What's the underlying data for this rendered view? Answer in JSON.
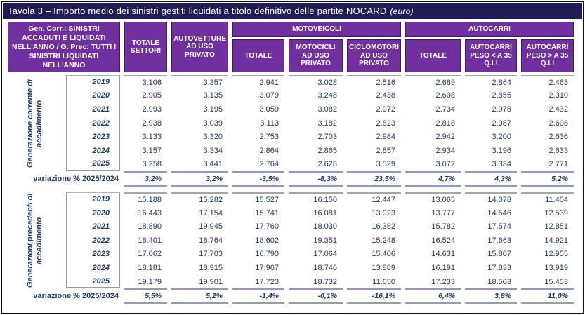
{
  "title": {
    "text": "Tavola 3 – Importo medio dei sinistri gestiti liquidati a titolo definitivo delle partite NOCARD",
    "suffix": "(euro)"
  },
  "colors": {
    "title_bg": "#201C55",
    "header_bg": "#7030A0",
    "header_text": "#FFFFFF",
    "data_text": "#1F3864",
    "rule_periwinkle": "#8E99C5",
    "rule_gray": "#A6A6A6",
    "frame_border": "#0B0B14"
  },
  "header": {
    "row_label": "Gen. Corr.: SINISTRI ACCADUTI E LIQUIDATI NELL'ANNO / G. Prec: TUTTI I SINISTRI LIQUIDATI NELL'ANNO",
    "totale_settori": "TOTALE SETTORI",
    "autovetture": "AUTOVETTURE AD USO PRIVATO",
    "motoveicoli": {
      "label": "MOTOVEICOLI",
      "totale": "TOTALE",
      "motocicli": "MOTOCICLI AD USO PRIVATO",
      "ciclomotori": "CICLOMOTORI AD USO PRIVATO"
    },
    "autocarri": {
      "label": "AUTOCARRI",
      "totale": "TOTALE",
      "peso_minore": "AUTOCARRI PESO < A 35 Q.LI",
      "peso_maggiore": "AUTOCARRI PESO > A 35 Q.LI"
    }
  },
  "blocks": [
    {
      "label": "Generazione corrente di accadimento",
      "rows": [
        {
          "year": "2019",
          "values": [
            "3.106",
            "3.357",
            "2.941",
            "3.028",
            "2.516",
            "2.689",
            "2.864",
            "2.463"
          ]
        },
        {
          "year": "2020",
          "values": [
            "2.905",
            "3.135",
            "3.079",
            "3.248",
            "2.438",
            "2.608",
            "2.855",
            "2.310"
          ]
        },
        {
          "year": "2021",
          "values": [
            "2.993",
            "3.195",
            "3.059",
            "3.082",
            "2.972",
            "2.734",
            "2.978",
            "2.432"
          ]
        },
        {
          "year": "2022",
          "values": [
            "2.938",
            "3.039",
            "3.113",
            "3.182",
            "2.823",
            "2.818",
            "2.987",
            "2.608"
          ]
        },
        {
          "year": "2023",
          "values": [
            "3.133",
            "3.320",
            "2.753",
            "2.703",
            "2.984",
            "2.942",
            "3.200",
            "2.636"
          ]
        },
        {
          "year": "2024",
          "values": [
            "3.157",
            "3.334",
            "2.864",
            "2.865",
            "2.857",
            "2.934",
            "3.196",
            "2.633"
          ]
        },
        {
          "year": "2025",
          "values": [
            "3.258",
            "3.441",
            "2.764",
            "2.628",
            "3.529",
            "3.072",
            "3.334",
            "2.771"
          ]
        }
      ],
      "variation": {
        "label": "variazione % 2025/2024",
        "values": [
          "3,2%",
          "3,2%",
          "-3,5%",
          "-8,3%",
          "23,5%",
          "4,7%",
          "4,3%",
          "5,2%"
        ]
      }
    },
    {
      "label": "Generazioni precedenti di accadimento",
      "rows": [
        {
          "year": "2019",
          "values": [
            "15.188",
            "15.282",
            "15.527",
            "16.150",
            "12.447",
            "13.065",
            "14.078",
            "11.404"
          ]
        },
        {
          "year": "2020",
          "values": [
            "16.443",
            "17.154",
            "15.741",
            "16.081",
            "13.923",
            "13.777",
            "14.546",
            "12.539"
          ]
        },
        {
          "year": "2021",
          "values": [
            "18.890",
            "19.945",
            "17.760",
            "18.030",
            "16.382",
            "15.782",
            "17.574",
            "12.851"
          ]
        },
        {
          "year": "2022",
          "values": [
            "18.401",
            "18.764",
            "18.602",
            "19.351",
            "15.248",
            "16.524",
            "17.663",
            "14.921"
          ]
        },
        {
          "year": "2023",
          "values": [
            "17.062",
            "17.703",
            "16.790",
            "17.064",
            "15.406",
            "14.631",
            "15.807",
            "12.955"
          ]
        },
        {
          "year": "2024",
          "values": [
            "18.181",
            "18.915",
            "17.967",
            "18.746",
            "13.889",
            "16.191",
            "17.833",
            "13.919"
          ]
        },
        {
          "year": "2025",
          "values": [
            "19.179",
            "19.901",
            "17.723",
            "18.732",
            "11.650",
            "17.233",
            "18.503",
            "15.453"
          ]
        }
      ],
      "variation": {
        "label": "variazione % 2025/2024",
        "values": [
          "5,5%",
          "5,2%",
          "-1,4%",
          "-0,1%",
          "-16,1%",
          "6,4%",
          "3,8%",
          "11,0%"
        ]
      }
    }
  ]
}
